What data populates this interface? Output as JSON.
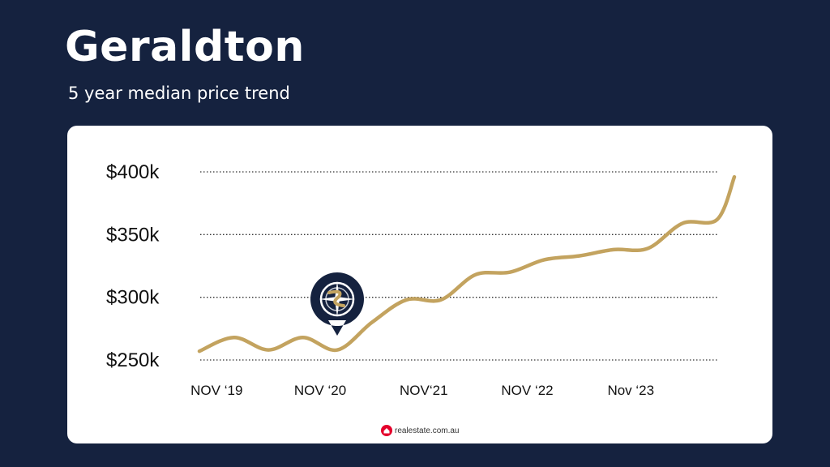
{
  "header": {
    "title": "Geraldton",
    "subtitle": "5 year median price trend"
  },
  "credit": {
    "text": "realestate.com.au",
    "icon": "realestate-logo-icon"
  },
  "marker": {
    "icon": "compass-pin-icon"
  },
  "colors": {
    "background": "#15223f",
    "card": "#ffffff",
    "line": "#c3a35f",
    "marker": "#15223f",
    "credit_logo": "#e4002b"
  },
  "chart_data": {
    "type": "line",
    "title": "",
    "xlabel": "",
    "ylabel": "",
    "ylim": [
      250000,
      400000
    ],
    "y_ticks": [
      {
        "value": 250000,
        "label": "$250k"
      },
      {
        "value": 300000,
        "label": "$300k"
      },
      {
        "value": 350000,
        "label": "$350k"
      },
      {
        "value": 400000,
        "label": "$400k"
      }
    ],
    "x_ticks": [
      {
        "value": "2019-11",
        "label": "NOV ‘19"
      },
      {
        "value": "2020-11",
        "label": "NOV ‘20"
      },
      {
        "value": "2021-11",
        "label": "NOV‘21"
      },
      {
        "value": "2022-11",
        "label": "NOV ‘22"
      },
      {
        "value": "2023-11",
        "label": "Nov ‘23"
      }
    ],
    "x_range": [
      "2019-09",
      "2024-11"
    ],
    "grid": "horizontal-dotted",
    "series": [
      {
        "x": [
          "2019-09",
          "2020-01",
          "2020-05",
          "2020-09",
          "2021-01",
          "2021-05",
          "2021-09",
          "2022-01",
          "2022-05",
          "2022-09",
          "2023-01",
          "2023-05",
          "2023-09",
          "2024-01",
          "2024-05",
          "2024-09",
          "2024-11"
        ],
        "values": [
          257000,
          268000,
          258000,
          268000,
          258000,
          280000,
          298000,
          298000,
          318000,
          320000,
          330000,
          333000,
          338000,
          339000,
          359000,
          362000,
          396000
        ]
      }
    ]
  }
}
